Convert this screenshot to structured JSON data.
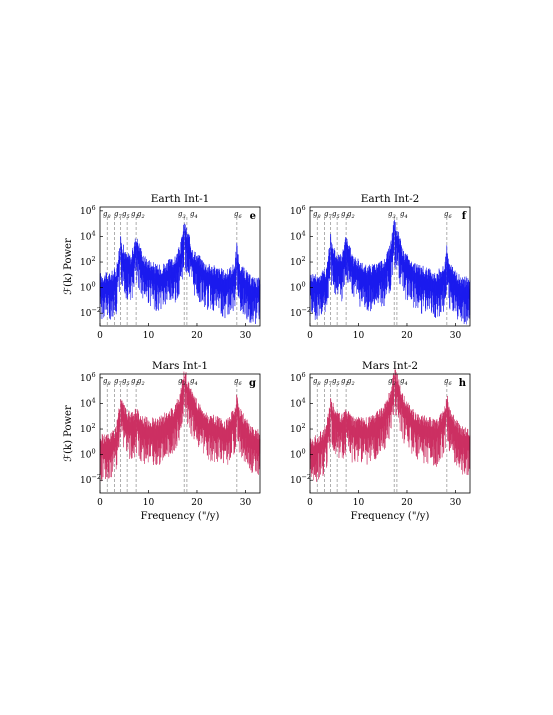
{
  "figure": {
    "colors": {
      "earth": "#1a1aee",
      "mars": "#cc2f62",
      "guide": "#9a9a9a",
      "axis": "#000000"
    }
  },
  "chart_data": [
    {
      "type": "line",
      "title": "Earth Int-1",
      "panel_letter": "e",
      "ylabel": "ℱ(k) Power",
      "xlabel": "",
      "xlim": [
        0,
        33
      ],
      "ylim": [
        0.001,
        2000000
      ],
      "y_scale": "log",
      "x_ticks": [
        "0",
        "10",
        "20",
        "30"
      ],
      "y_ticks": [
        "10^6",
        "10^4",
        "10^2",
        "10^0",
        "10^-2"
      ],
      "grid": false,
      "frequency_lines": [
        {
          "label": "g5",
          "x": 4.25
        },
        {
          "label": "g2",
          "x": 7.45
        },
        {
          "label": "g3",
          "x": 17.37
        },
        {
          "label": "g4",
          "x": 17.92
        },
        {
          "label": "g6",
          "x": 28.22
        }
      ],
      "series": [
        {
          "color": "earth",
          "baseline": [
            [
              0,
              0.8
            ],
            [
              2,
              0.8
            ],
            [
              3.3,
              2
            ],
            [
              4.25,
              500
            ],
            [
              5.4,
              30
            ],
            [
              6.5,
              25
            ],
            [
              7.45,
              1000
            ],
            [
              9,
              20
            ],
            [
              12,
              3
            ],
            [
              15.5,
              15
            ],
            [
              16.6,
              150
            ],
            [
              17.37,
              10000
            ],
            [
              17.92,
              3000
            ],
            [
              19.2,
              60
            ],
            [
              22,
              5
            ],
            [
              26,
              1.2
            ],
            [
              27.8,
              5
            ],
            [
              28.22,
              200
            ],
            [
              28.8,
              5
            ],
            [
              31,
              0.5
            ],
            [
              33,
              0.3
            ]
          ],
          "spikes": [
            [
              4.25,
              10000
            ],
            [
              7.45,
              4000
            ],
            [
              17.37,
              20000
            ],
            [
              17.92,
              8000
            ],
            [
              28.22,
              3000
            ]
          ]
        }
      ]
    },
    {
      "type": "line",
      "title": "Earth Int-2",
      "panel_letter": "f",
      "ylabel": "",
      "xlabel": "",
      "xlim": [
        0,
        33
      ],
      "ylim": [
        0.001,
        2000000
      ],
      "y_scale": "log",
      "x_ticks": [
        "0",
        "10",
        "20",
        "30"
      ],
      "y_ticks": [
        "10^6",
        "10^4",
        "10^2",
        "10^0",
        "10^-2"
      ],
      "grid": false,
      "frequency_lines": [
        {
          "label": "g5",
          "x": 4.25
        },
        {
          "label": "g2",
          "x": 7.45
        },
        {
          "label": "g3",
          "x": 17.37
        },
        {
          "label": "g4",
          "x": 17.92
        },
        {
          "label": "g6",
          "x": 28.22
        }
      ],
      "series": [
        {
          "color": "earth",
          "baseline": [
            [
              0,
              0.8
            ],
            [
              2,
              0.8
            ],
            [
              3.3,
              2
            ],
            [
              4.25,
              600
            ],
            [
              5.4,
              30
            ],
            [
              6.5,
              20
            ],
            [
              7.45,
              800
            ],
            [
              9,
              15
            ],
            [
              12,
              3
            ],
            [
              15.5,
              10
            ],
            [
              16.6,
              200
            ],
            [
              17.37,
              12000
            ],
            [
              17.92,
              4000
            ],
            [
              19.2,
              50
            ],
            [
              22,
              4
            ],
            [
              26,
              1
            ],
            [
              27.8,
              4
            ],
            [
              28.22,
              150
            ],
            [
              28.8,
              4
            ],
            [
              31,
              0.5
            ],
            [
              33,
              0.3
            ]
          ],
          "spikes": [
            [
              4.25,
              15000
            ],
            [
              7.45,
              3000
            ],
            [
              17.37,
              25000
            ],
            [
              17.92,
              10000
            ],
            [
              28.22,
              2000
            ]
          ]
        }
      ]
    },
    {
      "type": "line",
      "title": "Mars Int-1",
      "panel_letter": "g",
      "ylabel": "ℱ(k) Power",
      "xlabel": "Frequency (\"/y)",
      "xlim": [
        0,
        33
      ],
      "ylim": [
        0.001,
        2000000
      ],
      "y_scale": "log",
      "x_ticks": [
        "0",
        "10",
        "20",
        "30"
      ],
      "y_ticks": [
        "10^6",
        "10^4",
        "10^2",
        "10^0",
        "10^-2"
      ],
      "grid": false,
      "frequency_lines": [
        {
          "label": "g5",
          "x": 4.25
        },
        {
          "label": "g2",
          "x": 7.45
        },
        {
          "label": "g3",
          "x": 17.37
        },
        {
          "label": "g4",
          "x": 17.92
        },
        {
          "label": "g6",
          "x": 28.22
        }
      ],
      "series": [
        {
          "color": "mars",
          "baseline": [
            [
              0,
              2
            ],
            [
              2,
              3
            ],
            [
              3.3,
              10
            ],
            [
              4.25,
              1500
            ],
            [
              5.4,
              200
            ],
            [
              6.5,
              100
            ],
            [
              7.45,
              300
            ],
            [
              9,
              50
            ],
            [
              12,
              40
            ],
            [
              15,
              300
            ],
            [
              16.6,
              5000
            ],
            [
              17.37,
              400000
            ],
            [
              17.92,
              100000
            ],
            [
              19.2,
              3000
            ],
            [
              22,
              100
            ],
            [
              26,
              30
            ],
            [
              27.8,
              300
            ],
            [
              28.22,
              5000
            ],
            [
              28.8,
              300
            ],
            [
              31,
              10
            ],
            [
              33,
              5
            ]
          ],
          "spikes": [
            [
              4.25,
              20000
            ],
            [
              7.45,
              1500
            ],
            [
              17.37,
              1000000
            ],
            [
              17.92,
              300000
            ],
            [
              28.22,
              10000
            ]
          ]
        }
      ]
    },
    {
      "type": "line",
      "title": "Mars Int-2",
      "panel_letter": "h",
      "ylabel": "",
      "xlabel": "Frequency (\"/y)",
      "xlim": [
        0,
        33
      ],
      "ylim": [
        0.001,
        2000000
      ],
      "y_scale": "log",
      "x_ticks": [
        "0",
        "10",
        "20",
        "30"
      ],
      "y_ticks": [
        "10^6",
        "10^4",
        "10^2",
        "10^0",
        "10^-2"
      ],
      "grid": false,
      "frequency_lines": [
        {
          "label": "g5",
          "x": 4.25
        },
        {
          "label": "g2",
          "x": 7.45
        },
        {
          "label": "g3",
          "x": 17.37
        },
        {
          "label": "g4",
          "x": 17.92
        },
        {
          "label": "g6",
          "x": 28.22
        }
      ],
      "series": [
        {
          "color": "mars",
          "baseline": [
            [
              0,
              1
            ],
            [
              2,
              3
            ],
            [
              3.3,
              10
            ],
            [
              4.25,
              2000
            ],
            [
              5.4,
              200
            ],
            [
              6.5,
              100
            ],
            [
              7.45,
              250
            ],
            [
              9,
              50
            ],
            [
              12,
              40
            ],
            [
              15,
              300
            ],
            [
              16.6,
              6000
            ],
            [
              17.37,
              300000
            ],
            [
              17.92,
              200000
            ],
            [
              19.2,
              3000
            ],
            [
              22,
              100
            ],
            [
              26,
              30
            ],
            [
              27.8,
              300
            ],
            [
              28.22,
              4000
            ],
            [
              28.8,
              300
            ],
            [
              31,
              10
            ],
            [
              33,
              5
            ]
          ],
          "spikes": [
            [
              4.25,
              25000
            ],
            [
              7.45,
              1200
            ],
            [
              17.37,
              800000
            ],
            [
              17.92,
              500000
            ],
            [
              28.22,
              8000
            ]
          ]
        }
      ]
    }
  ]
}
